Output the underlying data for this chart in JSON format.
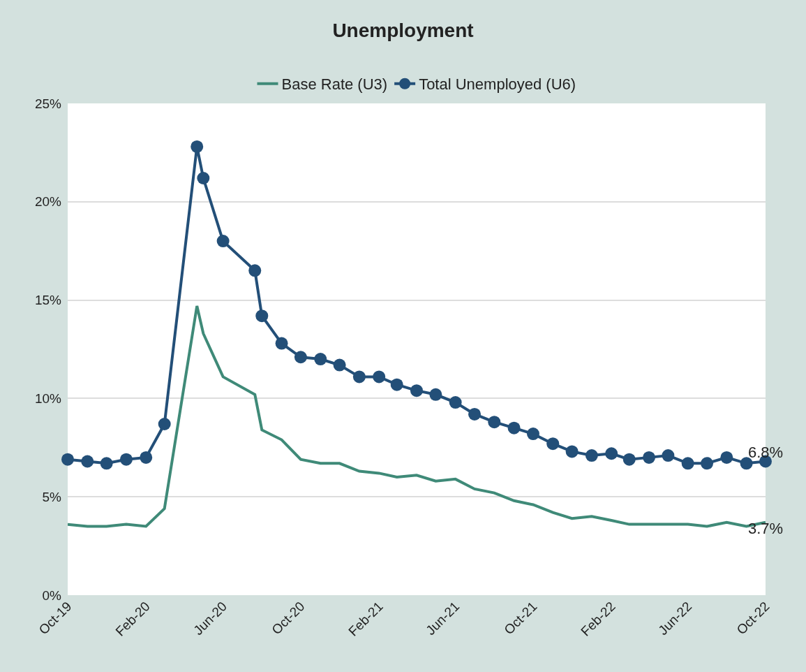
{
  "chart_data": {
    "type": "line",
    "title": "Unemployment",
    "legend": "top",
    "grid": "y",
    "line_style": "solid",
    "x": [
      "2019-10-01",
      "2019-11-01",
      "2019-12-01",
      "2020-01-01",
      "2020-02-01",
      "2020-03-01",
      "2020-04-21",
      "2020-05-01",
      "2020-06-01",
      "2020-07-21",
      "2020-08-01",
      "2020-09-01",
      "2020-10-01",
      "2020-11-01",
      "2020-12-01",
      "2021-01-01",
      "2021-02-01",
      "2021-03-01",
      "2021-04-01",
      "2021-05-01",
      "2021-06-01",
      "2021-07-01",
      "2021-08-01",
      "2021-09-01",
      "2021-10-01",
      "2021-11-01",
      "2021-12-01",
      "2022-01-01",
      "2022-02-01",
      "2022-03-01",
      "2022-04-01",
      "2022-05-01",
      "2022-06-01",
      "2022-07-01",
      "2022-08-01",
      "2022-09-01",
      "2022-10-01"
    ],
    "series": [
      {
        "name": "Base Rate (U3)",
        "color": "#3f8a78",
        "marker": "none",
        "values": [
          3.6,
          3.5,
          3.5,
          3.6,
          3.5,
          4.4,
          14.7,
          13.3,
          11.1,
          10.2,
          8.4,
          7.9,
          6.9,
          6.7,
          6.7,
          6.3,
          6.2,
          6.0,
          6.1,
          5.8,
          5.9,
          5.4,
          5.2,
          4.8,
          4.6,
          4.2,
          3.9,
          4.0,
          3.8,
          3.6,
          3.6,
          3.6,
          3.6,
          3.5,
          3.7,
          3.5,
          3.7
        ],
        "value_labels": [
          null,
          null,
          null,
          null,
          null,
          null,
          null,
          null,
          null,
          null,
          null,
          null,
          null,
          null,
          null,
          null,
          null,
          null,
          null,
          null,
          null,
          null,
          null,
          null,
          null,
          null,
          null,
          null,
          null,
          null,
          null,
          null,
          null,
          null,
          null,
          null,
          "3.7%"
        ]
      },
      {
        "name": "Total Unemployed (U6)",
        "color": "#234f78",
        "marker": "circle",
        "values": [
          6.9,
          6.8,
          6.7,
          6.9,
          7.0,
          8.7,
          22.8,
          21.2,
          18.0,
          16.5,
          14.2,
          12.8,
          12.1,
          12.0,
          11.7,
          11.1,
          11.1,
          10.7,
          10.4,
          10.2,
          9.8,
          9.2,
          8.8,
          8.5,
          8.2,
          7.7,
          7.3,
          7.1,
          7.2,
          6.9,
          7.0,
          7.1,
          6.7,
          6.7,
          7.0,
          6.7,
          6.8
        ],
        "value_labels": [
          null,
          null,
          null,
          null,
          null,
          null,
          null,
          null,
          null,
          null,
          null,
          null,
          null,
          null,
          null,
          null,
          null,
          null,
          null,
          null,
          null,
          null,
          null,
          null,
          null,
          null,
          null,
          null,
          null,
          null,
          null,
          null,
          null,
          null,
          null,
          null,
          "6.8%"
        ]
      }
    ],
    "xlim": [
      "2019-10-01",
      "2022-10-01"
    ],
    "xticks": [
      {
        "value": "2019-10-01",
        "label": "Oct-19"
      },
      {
        "value": "2020-02-01",
        "label": "Feb-20"
      },
      {
        "value": "2020-06-01",
        "label": "Jun-20"
      },
      {
        "value": "2020-10-01",
        "label": "Oct-20"
      },
      {
        "value": "2021-02-01",
        "label": "Feb-21"
      },
      {
        "value": "2021-06-01",
        "label": "Jun-21"
      },
      {
        "value": "2021-10-01",
        "label": "Oct-21"
      },
      {
        "value": "2022-02-01",
        "label": "Feb-22"
      },
      {
        "value": "2022-06-01",
        "label": "Jun-22"
      },
      {
        "value": "2022-10-01",
        "label": "Oct-22"
      }
    ],
    "ylim": [
      0,
      25
    ],
    "yticks": [
      {
        "value": 0,
        "label": "0%"
      },
      {
        "value": 5,
        "label": "5%"
      },
      {
        "value": 10,
        "label": "10%"
      },
      {
        "value": 15,
        "label": "15%"
      },
      {
        "value": 20,
        "label": "20%"
      },
      {
        "value": 25,
        "label": "25%"
      }
    ]
  }
}
